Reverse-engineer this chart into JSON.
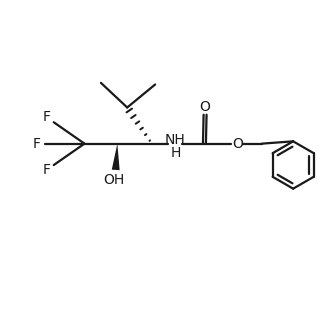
{
  "background_color": "#ffffff",
  "line_color": "#1a1a1a",
  "line_width": 1.6,
  "font_size": 10,
  "figsize": [
    3.3,
    3.3
  ],
  "dpi": 100,
  "xlim": [
    0,
    10
  ],
  "ylim": [
    0,
    10
  ],
  "f_labels": [
    "F",
    "F",
    "F"
  ],
  "oh_label": "OH",
  "nh_label": "NH",
  "o_label": "O",
  "h_label": "H"
}
